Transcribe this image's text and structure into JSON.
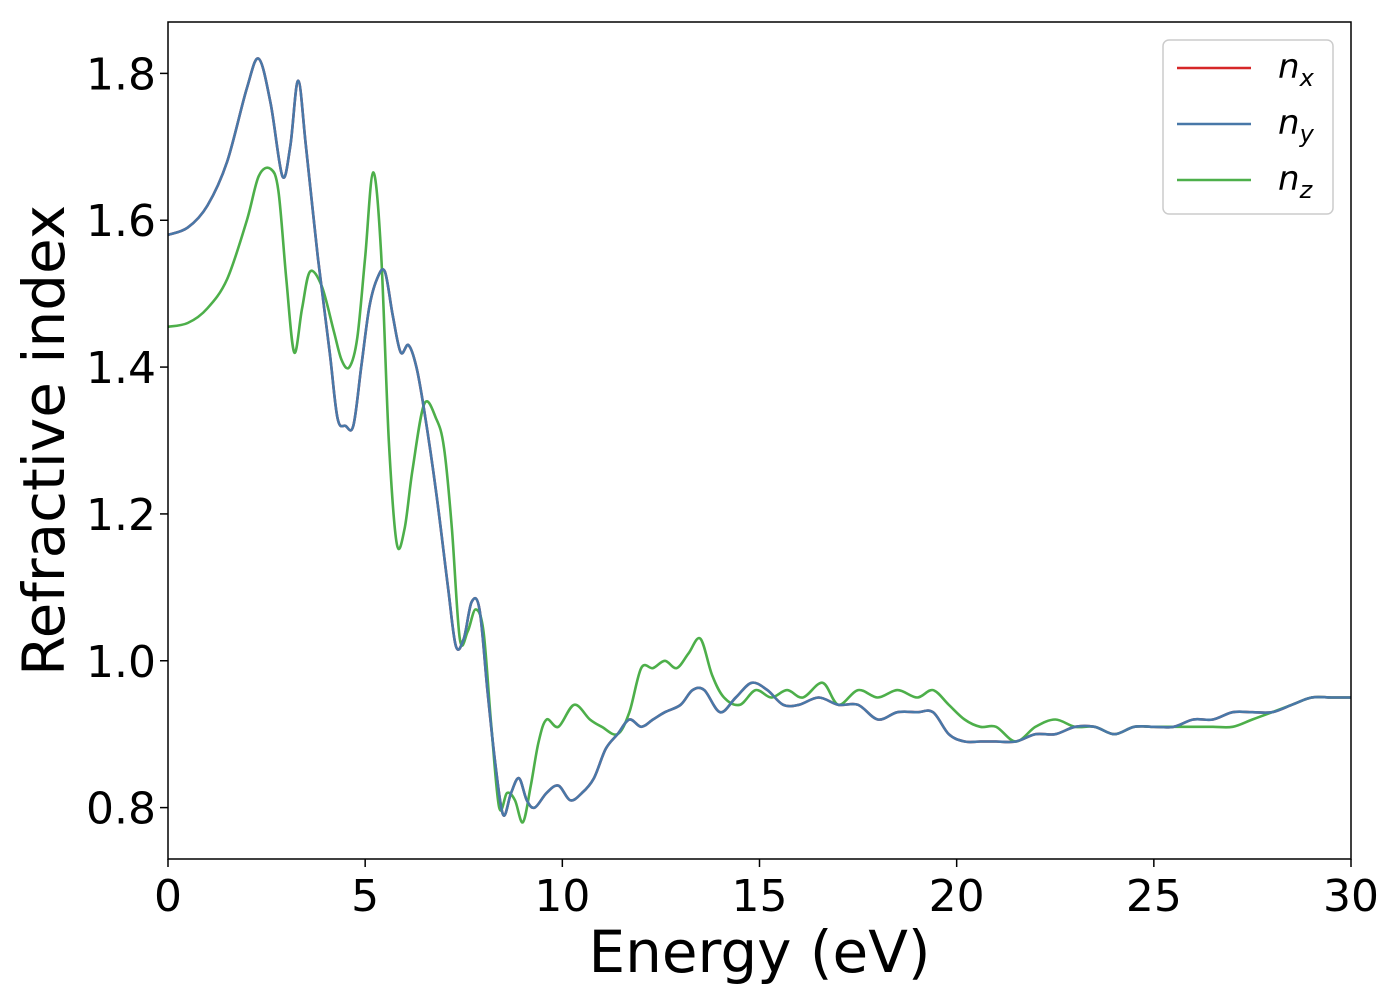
{
  "chart_data": {
    "type": "line",
    "title": "",
    "xlabel": "Energy (eV)",
    "ylabel": "Refractive index",
    "xlim": [
      0,
      30
    ],
    "ylim": [
      0.73,
      1.87
    ],
    "xticks": [
      0,
      5,
      10,
      15,
      20,
      25,
      30
    ],
    "yticks": [
      0.8,
      1.0,
      1.2,
      1.4,
      1.6,
      1.8
    ],
    "ytick_labels": [
      "0.8",
      "1.0",
      "1.2",
      "1.4",
      "1.6",
      "1.8"
    ],
    "grid": false,
    "legend_position": "top-right",
    "series": [
      {
        "name": "n",
        "subscript": "x",
        "color": "#d62728",
        "x": [
          0,
          0.5,
          1.0,
          1.5,
          2.0,
          2.3,
          2.6,
          2.9,
          3.1,
          3.3,
          3.5,
          3.8,
          4.1,
          4.3,
          4.5,
          4.7,
          4.9,
          5.1,
          5.3,
          5.5,
          5.7,
          5.9,
          6.1,
          6.3,
          6.5,
          6.8,
          7.1,
          7.3,
          7.5,
          7.7,
          7.9,
          8.1,
          8.3,
          8.5,
          8.7,
          8.9,
          9.1,
          9.3,
          9.6,
          9.9,
          10.2,
          10.5,
          10.8,
          11.1,
          11.4,
          11.7,
          12.0,
          12.3,
          12.6,
          13.0,
          13.3,
          13.6,
          14.0,
          14.4,
          14.8,
          15.2,
          15.6,
          16.0,
          16.5,
          17.0,
          17.5,
          18.0,
          18.5,
          19.0,
          19.4,
          19.8,
          20.2,
          20.6,
          21.0,
          21.5,
          22.0,
          22.5,
          23.0,
          23.5,
          24.0,
          24.5,
          25.0,
          25.5,
          26.0,
          26.5,
          27.0,
          27.5,
          28.0,
          28.5,
          29.0,
          29.5,
          30.0
        ],
        "y": [
          1.58,
          1.59,
          1.62,
          1.68,
          1.78,
          1.82,
          1.76,
          1.66,
          1.7,
          1.79,
          1.7,
          1.55,
          1.42,
          1.33,
          1.32,
          1.32,
          1.4,
          1.48,
          1.52,
          1.53,
          1.47,
          1.42,
          1.43,
          1.4,
          1.34,
          1.23,
          1.1,
          1.02,
          1.03,
          1.08,
          1.07,
          0.96,
          0.86,
          0.79,
          0.82,
          0.84,
          0.81,
          0.8,
          0.82,
          0.83,
          0.81,
          0.82,
          0.84,
          0.88,
          0.9,
          0.92,
          0.91,
          0.92,
          0.93,
          0.94,
          0.96,
          0.96,
          0.93,
          0.95,
          0.97,
          0.96,
          0.94,
          0.94,
          0.95,
          0.94,
          0.94,
          0.92,
          0.93,
          0.93,
          0.93,
          0.9,
          0.89,
          0.89,
          0.89,
          0.89,
          0.9,
          0.9,
          0.91,
          0.91,
          0.9,
          0.91,
          0.91,
          0.91,
          0.92,
          0.92,
          0.93,
          0.93,
          0.93,
          0.94,
          0.95,
          0.95,
          0.95
        ]
      },
      {
        "name": "n",
        "subscript": "y",
        "color": "#4878a8",
        "x": [
          0,
          0.5,
          1.0,
          1.5,
          2.0,
          2.3,
          2.6,
          2.9,
          3.1,
          3.3,
          3.5,
          3.8,
          4.1,
          4.3,
          4.5,
          4.7,
          4.9,
          5.1,
          5.3,
          5.5,
          5.7,
          5.9,
          6.1,
          6.3,
          6.5,
          6.8,
          7.1,
          7.3,
          7.5,
          7.7,
          7.9,
          8.1,
          8.3,
          8.5,
          8.7,
          8.9,
          9.1,
          9.3,
          9.6,
          9.9,
          10.2,
          10.5,
          10.8,
          11.1,
          11.4,
          11.7,
          12.0,
          12.3,
          12.6,
          13.0,
          13.3,
          13.6,
          14.0,
          14.4,
          14.8,
          15.2,
          15.6,
          16.0,
          16.5,
          17.0,
          17.5,
          18.0,
          18.5,
          19.0,
          19.4,
          19.8,
          20.2,
          20.6,
          21.0,
          21.5,
          22.0,
          22.5,
          23.0,
          23.5,
          24.0,
          24.5,
          25.0,
          25.5,
          26.0,
          26.5,
          27.0,
          27.5,
          28.0,
          28.5,
          29.0,
          29.5,
          30.0
        ],
        "y": [
          1.58,
          1.59,
          1.62,
          1.68,
          1.78,
          1.82,
          1.76,
          1.66,
          1.7,
          1.79,
          1.7,
          1.55,
          1.42,
          1.33,
          1.32,
          1.32,
          1.4,
          1.48,
          1.52,
          1.53,
          1.47,
          1.42,
          1.43,
          1.4,
          1.34,
          1.23,
          1.1,
          1.02,
          1.03,
          1.08,
          1.07,
          0.96,
          0.86,
          0.79,
          0.82,
          0.84,
          0.81,
          0.8,
          0.82,
          0.83,
          0.81,
          0.82,
          0.84,
          0.88,
          0.9,
          0.92,
          0.91,
          0.92,
          0.93,
          0.94,
          0.96,
          0.96,
          0.93,
          0.95,
          0.97,
          0.96,
          0.94,
          0.94,
          0.95,
          0.94,
          0.94,
          0.92,
          0.93,
          0.93,
          0.93,
          0.9,
          0.89,
          0.89,
          0.89,
          0.89,
          0.9,
          0.9,
          0.91,
          0.91,
          0.9,
          0.91,
          0.91,
          0.91,
          0.92,
          0.92,
          0.93,
          0.93,
          0.93,
          0.94,
          0.95,
          0.95,
          0.95
        ]
      },
      {
        "name": "n",
        "subscript": "z",
        "color": "#4daf4a",
        "x": [
          0,
          0.5,
          1.0,
          1.5,
          2.0,
          2.3,
          2.6,
          2.8,
          3.0,
          3.2,
          3.4,
          3.6,
          3.9,
          4.2,
          4.4,
          4.6,
          4.8,
          5.0,
          5.2,
          5.4,
          5.6,
          5.8,
          6.0,
          6.2,
          6.5,
          6.8,
          7.0,
          7.2,
          7.4,
          7.6,
          7.8,
          8.0,
          8.2,
          8.4,
          8.6,
          8.8,
          9.0,
          9.2,
          9.4,
          9.6,
          9.9,
          10.3,
          10.7,
          11.0,
          11.4,
          11.7,
          12.0,
          12.3,
          12.6,
          12.9,
          13.2,
          13.5,
          13.8,
          14.1,
          14.5,
          14.9,
          15.3,
          15.7,
          16.1,
          16.6,
          17.0,
          17.5,
          18.0,
          18.5,
          19.0,
          19.4,
          19.8,
          20.2,
          20.6,
          21.0,
          21.5,
          22.0,
          22.5,
          23.0,
          23.5,
          24.0,
          24.5,
          25.0,
          25.5,
          26.0,
          26.5,
          27.0,
          27.5,
          28.0,
          28.5,
          29.0,
          29.5,
          30.0
        ],
        "y": [
          1.455,
          1.46,
          1.48,
          1.52,
          1.6,
          1.66,
          1.67,
          1.64,
          1.52,
          1.42,
          1.48,
          1.53,
          1.51,
          1.45,
          1.41,
          1.4,
          1.44,
          1.55,
          1.665,
          1.56,
          1.3,
          1.16,
          1.18,
          1.26,
          1.35,
          1.33,
          1.29,
          1.18,
          1.03,
          1.04,
          1.07,
          1.04,
          0.91,
          0.8,
          0.82,
          0.81,
          0.78,
          0.83,
          0.89,
          0.92,
          0.91,
          0.94,
          0.92,
          0.91,
          0.9,
          0.93,
          0.99,
          0.99,
          1.0,
          0.99,
          1.01,
          1.03,
          0.98,
          0.95,
          0.94,
          0.96,
          0.95,
          0.96,
          0.95,
          0.97,
          0.94,
          0.96,
          0.95,
          0.96,
          0.95,
          0.96,
          0.94,
          0.92,
          0.91,
          0.91,
          0.89,
          0.91,
          0.92,
          0.91,
          0.91,
          0.9,
          0.91,
          0.91,
          0.91,
          0.91,
          0.91,
          0.91,
          0.92,
          0.93,
          0.94,
          0.95,
          0.95,
          0.95
        ]
      }
    ]
  }
}
